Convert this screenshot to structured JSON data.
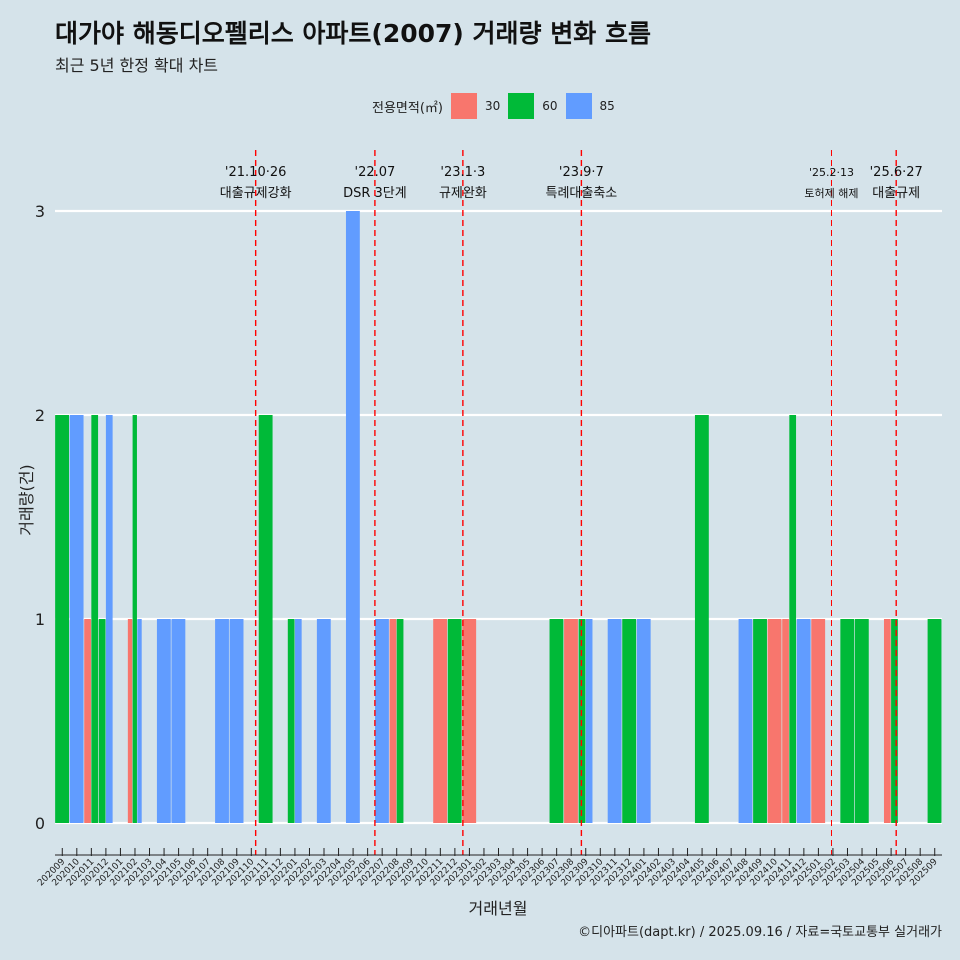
{
  "title": "대가야 해동디오펠리스 아파트(2007) 거래량 변화 흐름",
  "subtitle": "최근 5년 한정 확대 차트",
  "caption": "©디아파트(dapt.kr) / 2025.09.16 / 자료=국토교통부 실거래가",
  "legend": {
    "title": "전용면적(㎡)",
    "items": [
      {
        "label": "30",
        "color": "#f8766d"
      },
      {
        "label": "60",
        "color": "#00ba38"
      },
      {
        "label": "85",
        "color": "#619cff"
      }
    ]
  },
  "chart_data": {
    "type": "bar",
    "xlabel": "거래년월",
    "ylabel": "거래량(건)",
    "ylim": [
      0,
      3
    ],
    "yticks": [
      0,
      1,
      2,
      3
    ],
    "grid": true,
    "legend_position": "top",
    "categories": [
      "202009",
      "202010",
      "202011",
      "202012",
      "202101",
      "202102",
      "202103",
      "202104",
      "202105",
      "202106",
      "202107",
      "202108",
      "202109",
      "202110",
      "202111",
      "202112",
      "202201",
      "202202",
      "202203",
      "202204",
      "202205",
      "202206",
      "202207",
      "202208",
      "202209",
      "202210",
      "202211",
      "202212",
      "202301",
      "202302",
      "202303",
      "202304",
      "202305",
      "202306",
      "202307",
      "202308",
      "202309",
      "202310",
      "202311",
      "202312",
      "202401",
      "202402",
      "202403",
      "202404",
      "202405",
      "202406",
      "202407",
      "202408",
      "202409",
      "202410",
      "202411",
      "202412",
      "202501",
      "202502",
      "202503",
      "202504",
      "202505",
      "202506",
      "202507",
      "202508",
      "202509"
    ],
    "series": [
      {
        "name": "30",
        "color": "#f8766d",
        "values": [
          0,
          0,
          1,
          0,
          0,
          1,
          0,
          0,
          0,
          0,
          0,
          0,
          0,
          0,
          0,
          0,
          0,
          0,
          0,
          0,
          0,
          0,
          0,
          1,
          0,
          0,
          1,
          0,
          1,
          0,
          0,
          0,
          0,
          0,
          0,
          1,
          0,
          0,
          0,
          0,
          0,
          0,
          0,
          0,
          0,
          0,
          0,
          0,
          0,
          1,
          1,
          0,
          1,
          0,
          0,
          0,
          0,
          1,
          0,
          0,
          0
        ]
      },
      {
        "name": "60",
        "color": "#00ba38",
        "values": [
          2,
          0,
          2,
          1,
          0,
          2,
          0,
          0,
          0,
          0,
          0,
          0,
          0,
          0,
          2,
          0,
          1,
          0,
          0,
          0,
          0,
          0,
          0,
          1,
          0,
          0,
          0,
          1,
          0,
          0,
          0,
          0,
          0,
          0,
          1,
          0,
          1,
          0,
          0,
          1,
          0,
          0,
          0,
          0,
          2,
          0,
          0,
          0,
          1,
          0,
          2,
          0,
          0,
          0,
          1,
          1,
          0,
          1,
          0,
          0,
          1
        ]
      },
      {
        "name": "85",
        "color": "#619cff",
        "values": [
          0,
          2,
          0,
          2,
          0,
          1,
          0,
          1,
          1,
          0,
          0,
          1,
          1,
          0,
          0,
          0,
          1,
          0,
          1,
          0,
          3,
          0,
          1,
          0,
          0,
          0,
          0,
          0,
          0,
          0,
          0,
          0,
          0,
          0,
          0,
          0,
          1,
          0,
          1,
          0,
          1,
          0,
          0,
          0,
          0,
          0,
          0,
          1,
          0,
          0,
          0,
          1,
          0,
          0,
          0,
          0,
          0,
          0,
          0,
          0,
          0
        ]
      }
    ],
    "events": [
      {
        "date": "'21.10·26",
        "label": "대출규제강화",
        "month": "202110",
        "frac": 0.8
      },
      {
        "date": "'22.07",
        "label": "DSR 3단계",
        "month": "202207",
        "frac": 0.0
      },
      {
        "date": "'23.1·3",
        "label": "규제완화",
        "month": "202301",
        "frac": 0.05
      },
      {
        "date": "'23.9·7",
        "label": "특례대출축소",
        "month": "202309",
        "frac": 0.2
      },
      {
        "date": "'25.2·13",
        "label": "토허제 해제",
        "month": "202502",
        "frac": 0.4,
        "small": true
      },
      {
        "date": "'25.6·27",
        "label": "대출규제",
        "month": "202506",
        "frac": 0.85
      }
    ]
  }
}
